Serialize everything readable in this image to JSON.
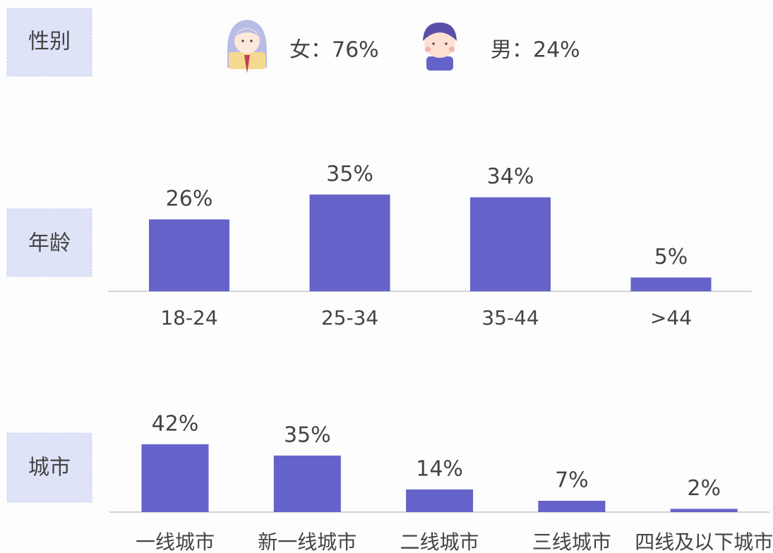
{
  "gender": {
    "label": "性别",
    "items": [
      {
        "text": "女：76%",
        "value": 76
      },
      {
        "text": "男：24%",
        "value": 24
      }
    ]
  },
  "chart_data": [
    {
      "type": "bar",
      "title": "年龄",
      "color": "#6563c9",
      "categories": [
        "18-24",
        "25-34",
        "35-44",
        ">44"
      ],
      "values": [
        26,
        35,
        34,
        5
      ],
      "value_labels": [
        "26%",
        "35%",
        "34%",
        "5%"
      ]
    },
    {
      "type": "bar",
      "title": "城市",
      "color": "#6563c9",
      "categories": [
        "一线城市",
        "新一线城市",
        "二线城市",
        "三线城市",
        "四线及以下城市"
      ],
      "values": [
        42,
        35,
        14,
        7,
        2
      ],
      "value_labels": [
        "42%",
        "35%",
        "14%",
        "7%",
        "2%"
      ]
    }
  ]
}
